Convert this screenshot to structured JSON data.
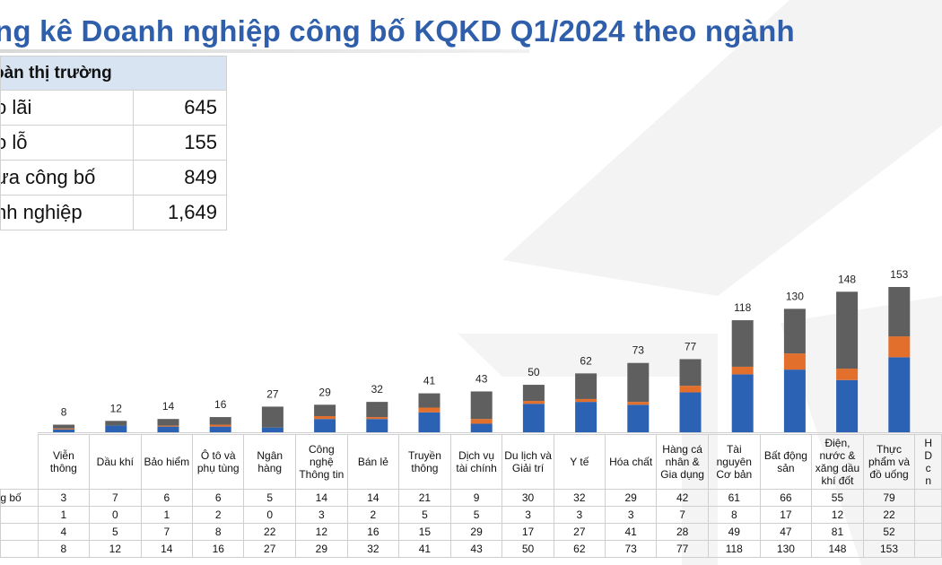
{
  "title": "ng kê Doanh nghiệp công bố KQKD Q1/2024 theo ngành",
  "summary": {
    "header": "oàn thị trường",
    "rows": [
      {
        "label": "o lãi",
        "value": "645"
      },
      {
        "label": "o lỗ",
        "value": "155"
      },
      {
        "label": "ưa công bố",
        "value": "849"
      },
      {
        "label": "nh nghiệp",
        "value": "1,649"
      }
    ]
  },
  "colors": {
    "title": "#2f5faa",
    "profit": "#2b62b4",
    "loss": "#e26f2c",
    "unpublished": "#5f5f5f",
    "watermark": "#f1f1f1"
  },
  "chart_data": {
    "type": "bar",
    "stacked": true,
    "categories": [
      "Viễn\nthông",
      "Dầu khí",
      "Bảo hiểm",
      "Ô tô và\nphụ tùng",
      "Ngân\nhàng",
      "Công\nnghệ\nThông tin",
      "Bán lẻ",
      "Truyền\nthông",
      "Dịch vụ\ntài chính",
      "Du lịch và\nGiải trí",
      "Y tế",
      "Hóa chất",
      "Hàng cá\nnhân &\nGia dụng",
      "Tài\nnguyên\nCơ bản",
      "Bất động\nsản",
      "Điện,\nnước &\nxăng dầu\nkhí đốt",
      "Thực\nphẩm và\nđồ uống",
      "H\nD\nc\nn"
    ],
    "series": [
      {
        "key": "profit",
        "values": [
          3,
          7,
          6,
          6,
          5,
          14,
          14,
          21,
          9,
          30,
          32,
          29,
          42,
          61,
          66,
          55,
          79,
          null
        ]
      },
      {
        "key": "loss",
        "values": [
          1,
          0,
          1,
          2,
          0,
          3,
          2,
          5,
          5,
          3,
          3,
          3,
          7,
          8,
          17,
          12,
          22,
          null
        ]
      },
      {
        "key": "unpublished",
        "values": [
          4,
          5,
          7,
          8,
          22,
          12,
          16,
          15,
          29,
          17,
          27,
          41,
          28,
          49,
          47,
          81,
          52,
          null
        ]
      }
    ],
    "totals": [
      8,
      12,
      14,
      16,
      27,
      29,
      32,
      41,
      43,
      50,
      62,
      73,
      77,
      118,
      130,
      148,
      153,
      null
    ],
    "row_labels": [
      "ông bố",
      "",
      "",
      ""
    ],
    "ylim": [
      0,
      153
    ],
    "grid": false,
    "legend": "none"
  }
}
